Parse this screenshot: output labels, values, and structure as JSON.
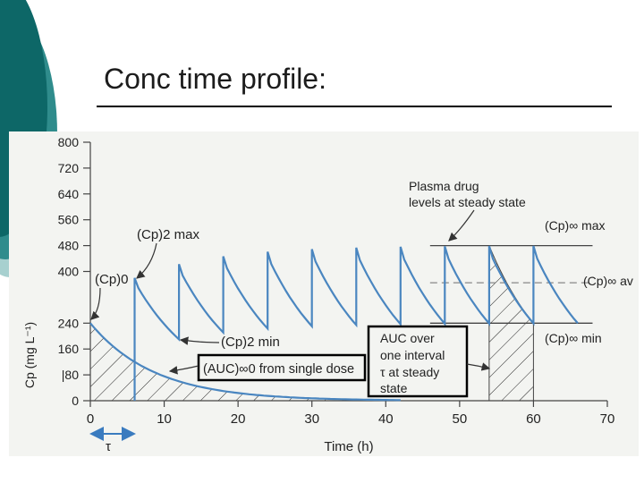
{
  "slide": {
    "title": "Conc time profile:"
  },
  "theme": {
    "teal_dark": "#0d6767",
    "teal_mid": "#2f8c8c",
    "teal_light": "#a7d0cf",
    "curve": "#4a86c0",
    "accent_box": "#000000"
  },
  "chart_data": {
    "type": "line",
    "xlabel": "Time (h)",
    "ylabel": "Cp (mg L⁻¹)",
    "xlim": [
      0,
      70
    ],
    "ylim": [
      0,
      800
    ],
    "x_ticks": [
      "0",
      "10",
      "20",
      "30",
      "40",
      "50",
      "60",
      "70"
    ],
    "y_ticks": [
      "800",
      "720",
      "640",
      "560",
      "480",
      "400",
      "240",
      "160",
      "|80",
      "0"
    ],
    "y_tick_values": [
      800,
      720,
      640,
      560,
      480,
      400,
      240,
      160,
      80,
      0
    ],
    "single_dose": {
      "c0": 240,
      "k": 0.1155,
      "x_end": 42
    },
    "multiple_dose": {
      "tau": 6,
      "first_dose_time": 6,
      "doses": 10,
      "c_peak_first": 380,
      "c_peak_ss": 480,
      "c_trough_ss": 240,
      "k": 0.1155
    },
    "hatched_regions": [
      {
        "name": "AUC from single dose",
        "x_start": 0,
        "x_end": 42
      },
      {
        "name": "AUC over one interval at steady state",
        "x_start": 54,
        "x_end": 60
      }
    ],
    "reference_lines": [
      {
        "name": "Cp ss max",
        "y": 480,
        "x_start": 46,
        "x_end": 68
      },
      {
        "name": "Cp ss av",
        "y": 365,
        "x_start": 46,
        "x_end": 68
      },
      {
        "name": "Cp ss min",
        "y": 240,
        "x_start": 46,
        "x_end": 68
      }
    ],
    "annotations": {
      "plateau": [
        "Plasma drug",
        "levels at steady state"
      ],
      "cp2max": "(Cp)2 max",
      "cp0": "(Cp)0",
      "cp2min": "(Cp)2 min",
      "auc_single": "(AUC)∞0 from single dose",
      "auc_interval": [
        "AUC over",
        "one interval",
        "τ at steady",
        "state"
      ],
      "cpss_max": "(Cp)∞ max",
      "cpss_av": "(Cp)∞ av",
      "cpss_min": "(Cp)∞ min",
      "tau_label": "τ"
    }
  }
}
